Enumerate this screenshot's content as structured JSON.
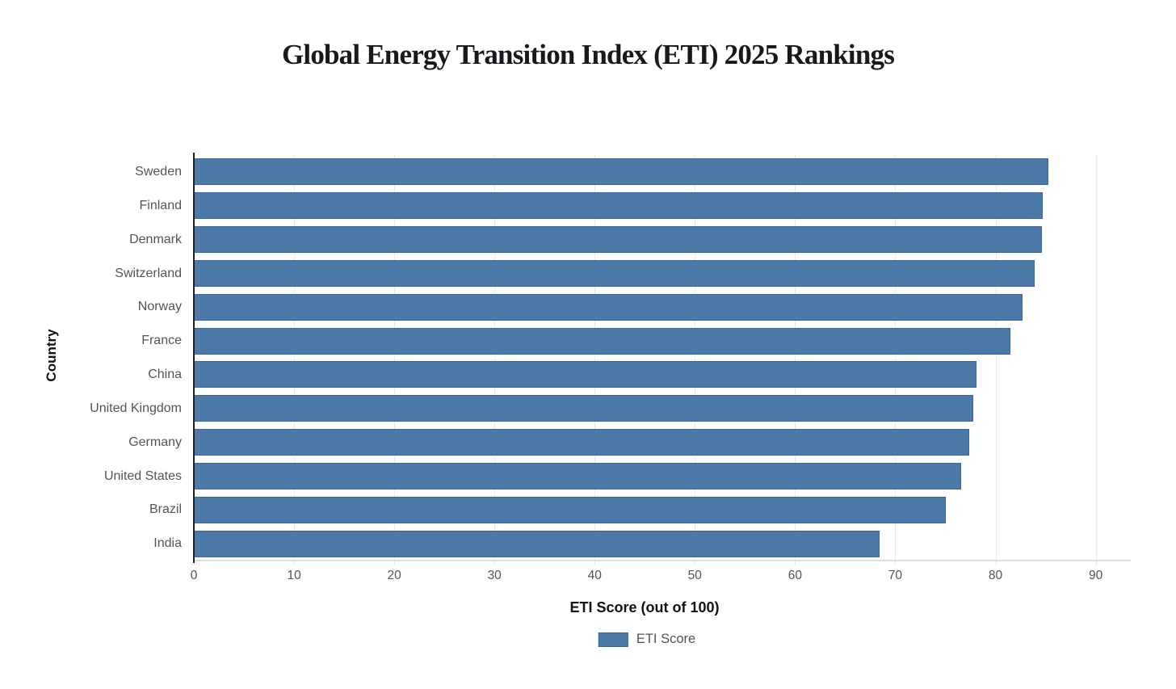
{
  "chart_data": {
    "type": "bar",
    "orientation": "horizontal",
    "title": "Global Energy Transition Index (ETI) 2025 Rankings",
    "xlabel": "ETI Score (out of 100)",
    "ylabel": "Country",
    "categories": [
      "Sweden",
      "Finland",
      "Denmark",
      "Switzerland",
      "Norway",
      "France",
      "China",
      "United Kingdom",
      "Germany",
      "United States",
      "Brazil",
      "India"
    ],
    "series": [
      {
        "name": "ETI Score",
        "values": [
          85.3,
          84.7,
          84.6,
          83.9,
          82.7,
          81.5,
          78.1,
          77.8,
          77.4,
          76.6,
          75.0,
          68.4
        ]
      }
    ],
    "xlim": [
      0,
      93.5
    ],
    "xticks": [
      0,
      10,
      20,
      30,
      40,
      50,
      60,
      70,
      80,
      90
    ],
    "grid": true,
    "legend_position": "bottom",
    "colors": {
      "bar_fill": "#4c79a8",
      "bar_border": "#3a689b",
      "gridline": "#e8ebed",
      "axis_line_dark": "#1c1e21",
      "axis_line_light": "#d9dee2",
      "tick_label": "#545454",
      "axis_title": "#101214",
      "title": "#17191c",
      "background": "#ffffff"
    }
  },
  "legend": {
    "items": [
      {
        "label": "ETI Score",
        "color": "#4c79a8"
      }
    ]
  }
}
